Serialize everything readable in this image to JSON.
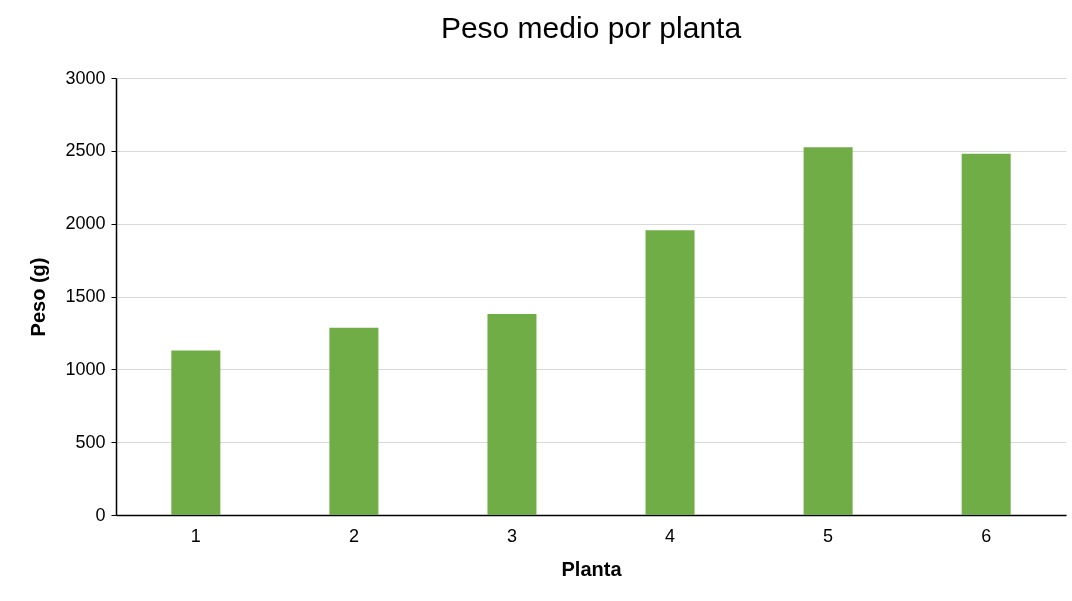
{
  "chart_data": {
    "type": "bar",
    "title": "Peso medio por planta",
    "xlabel": "Planta",
    "ylabel": "Peso (g)",
    "categories": [
      "1",
      "2",
      "3",
      "4",
      "5",
      "6"
    ],
    "values": [
      1130,
      1285,
      1380,
      1955,
      2525,
      2480
    ],
    "color": "#70ad47",
    "ylim": [
      0,
      3000
    ],
    "yticks": [
      0,
      500,
      1000,
      1500,
      2000,
      2500,
      3000
    ],
    "grid": "y"
  }
}
